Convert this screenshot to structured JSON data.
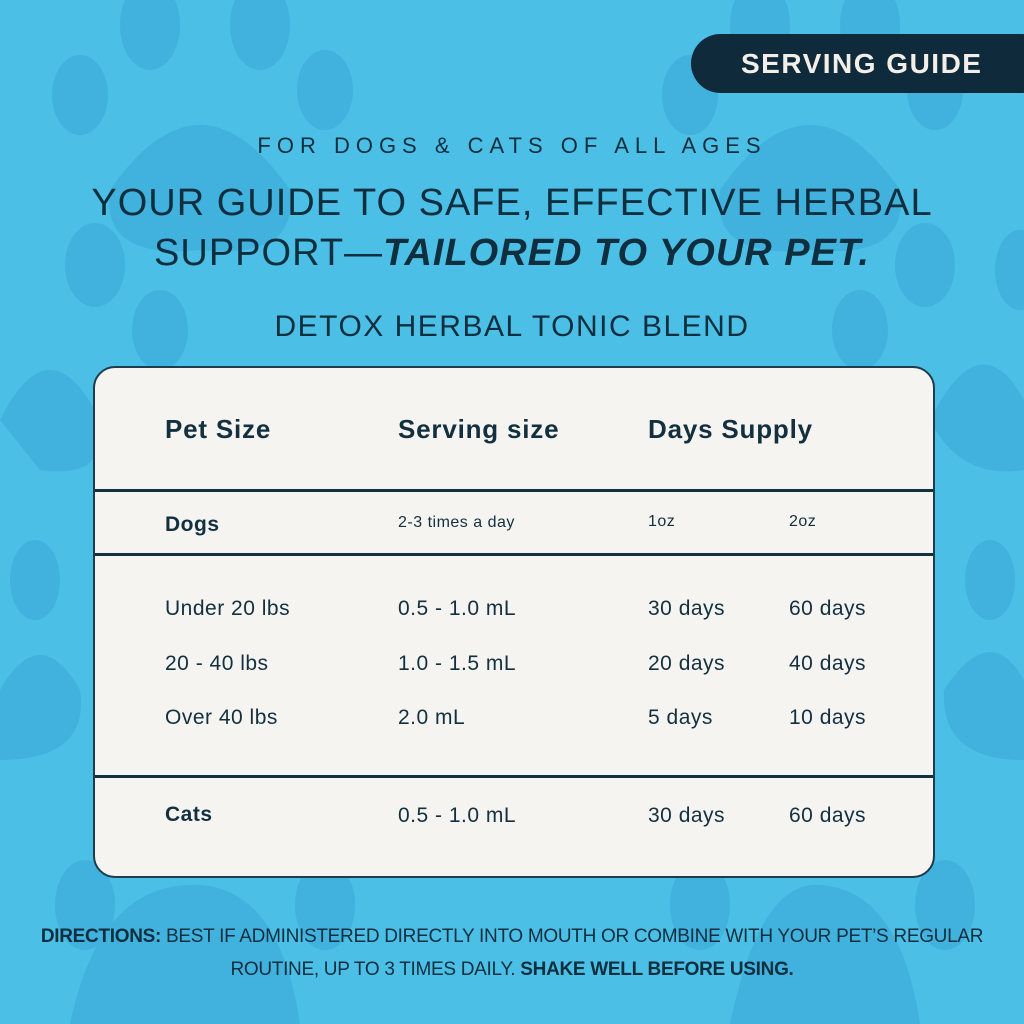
{
  "colors": {
    "background": "#4bbfe6",
    "paw_print": "#41b1de",
    "text_dark": "#0f2f3f",
    "card": "#f6f4f1",
    "badge": "#0f2b3b"
  },
  "badge": {
    "label": "SERVING GUIDE"
  },
  "subtitle": "FOR DOGS & CATS OF ALL AGES",
  "headline": {
    "line1": "YOUR GUIDE TO SAFE, EFFECTIVE HERBAL",
    "line2_plain": "SUPPORT—",
    "line2_italic": "TAILORED TO YOUR PET."
  },
  "product": "DETOX HERBAL TONIC BLEND",
  "table": {
    "headers": [
      "Pet Size",
      "Serving size",
      "Days Supply"
    ],
    "dogs_row": {
      "label": "Dogs",
      "frequency": "2-3 times a day",
      "size1": "1oz",
      "size2": "2oz"
    },
    "dog_rows": [
      {
        "size": "Under 20 lbs",
        "serving": "0.5 - 1.0 mL",
        "days_1oz": "30 days",
        "days_2oz": "60 days"
      },
      {
        "size": "20 - 40 lbs",
        "serving": "1.0 - 1.5 mL",
        "days_1oz": "20 days",
        "days_2oz": "40 days"
      },
      {
        "size": "Over 40 lbs",
        "serving": "2.0 mL",
        "days_1oz": "5 days",
        "days_2oz": "10 days"
      }
    ],
    "cats_row": {
      "label": "Cats",
      "serving": "0.5 - 1.0 mL",
      "days_1oz": "30 days",
      "days_2oz": "60 days"
    }
  },
  "directions": {
    "label": "DIRECTIONS:",
    "text": "BEST IF ADMINISTERED DIRECTLY INTO MOUTH OR COMBINE WITH YOUR PET’S REGULAR ROUTINE, UP TO 3 TIMES DAILY.",
    "emphasis": "SHAKE WELL BEFORE USING."
  }
}
